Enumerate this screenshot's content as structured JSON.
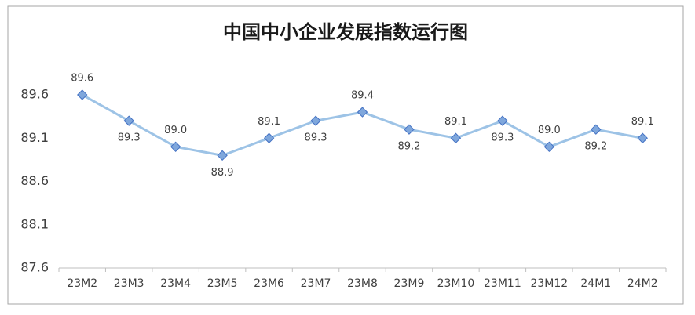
{
  "chart_data": {
    "type": "line",
    "title": "中国中小企业发展指数运行图",
    "categories": [
      "23M2",
      "23M3",
      "23M4",
      "23M5",
      "23M6",
      "23M7",
      "23M8",
      "23M9",
      "23M10",
      "23M11",
      "23M12",
      "24M1",
      "24M2"
    ],
    "values": [
      89.6,
      89.3,
      89.0,
      88.9,
      89.1,
      89.3,
      89.4,
      89.2,
      89.1,
      89.3,
      89.0,
      89.2,
      89.1
    ],
    "value_labels": [
      "89.6",
      "89.3",
      "89.0",
      "88.9",
      "89.1",
      "89.3",
      "89.4",
      "89.2",
      "89.1",
      "89.3",
      "89.0",
      "89.2",
      "89.1"
    ],
    "color": "#9dc3e6",
    "marker_color": "#7fa7dc",
    "ylim": [
      87.6,
      89.6
    ],
    "yticks": [
      87.6,
      88.1,
      88.6,
      89.1,
      89.6
    ],
    "grid": false
  }
}
